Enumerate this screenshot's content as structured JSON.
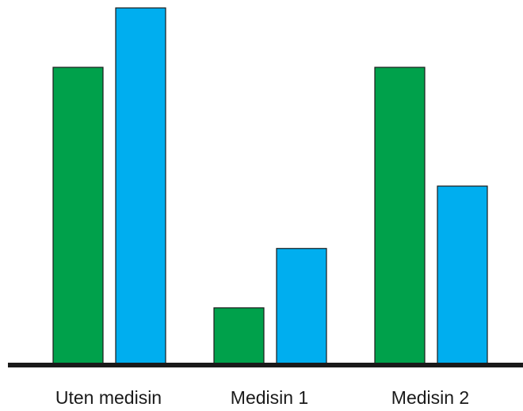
{
  "chart_data": {
    "type": "bar",
    "categories": [
      "Uten medisin",
      "Medisin 1",
      "Medisin 2"
    ],
    "series": [
      {
        "values": [
          100,
          19,
          100
        ],
        "color": "#00a14b"
      },
      {
        "values": [
          120,
          39,
          60
        ],
        "color": "#00aeef"
      }
    ],
    "ylim": [
      0,
      120
    ],
    "grid": false,
    "axis_color": "#1a1a1a"
  }
}
